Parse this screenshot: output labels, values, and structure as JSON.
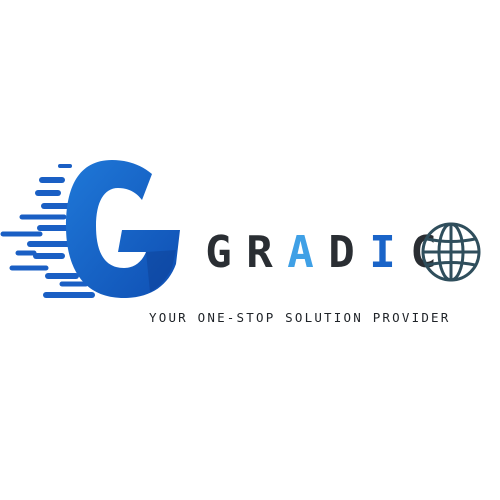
{
  "logo": {
    "letters": [
      {
        "char": "G",
        "tone": "dark"
      },
      {
        "char": "R",
        "tone": "dark"
      },
      {
        "char": "A",
        "tone": "light"
      },
      {
        "char": "D",
        "tone": "dark"
      },
      {
        "char": "I",
        "tone": "blue"
      },
      {
        "char": "C",
        "tone": "dark"
      }
    ],
    "tagline": "YOUR ONE-STOP SOLUTION PROVIDER",
    "icons": [
      "speed-g-icon",
      "globe-icon"
    ],
    "colors": {
      "dark": "#2a2e33",
      "blue": "#1a64c8",
      "light": "#3fa0e6",
      "globe": "#2f4e5c"
    }
  }
}
